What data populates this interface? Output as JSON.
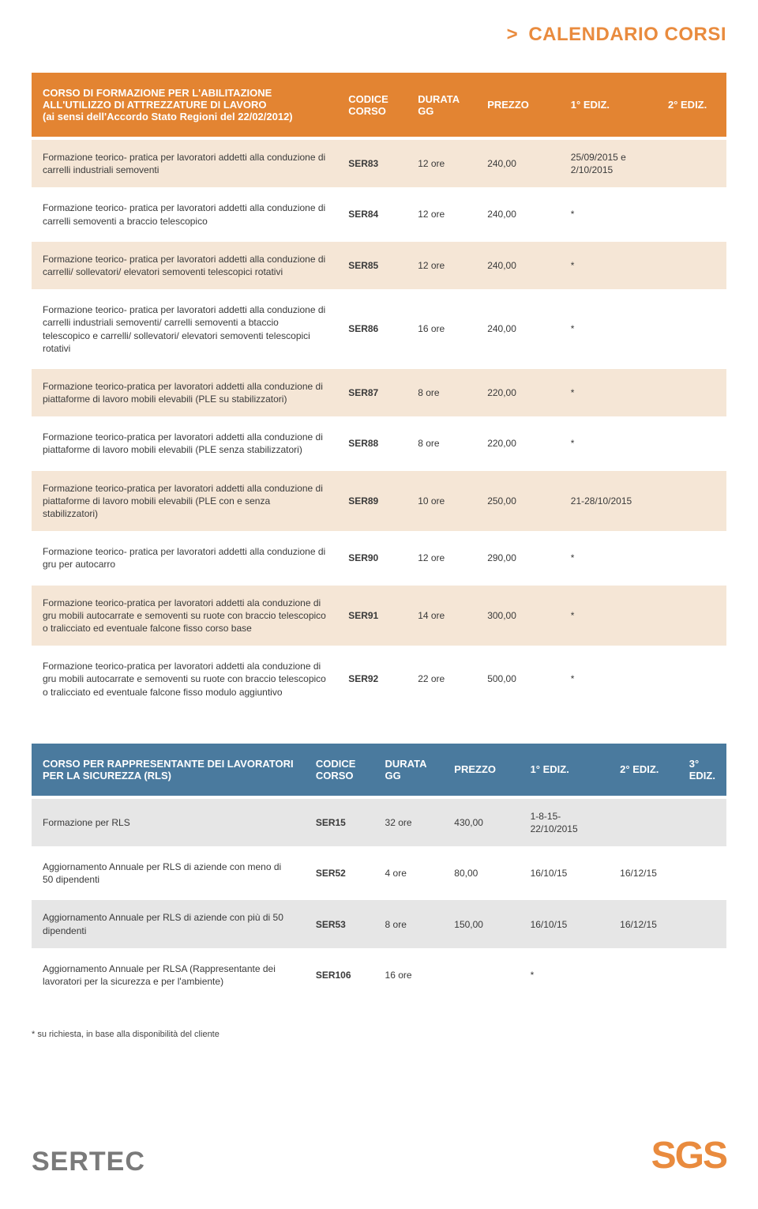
{
  "page_title_prefix": ">",
  "page_title": "CALENDARIO CORSI",
  "colors": {
    "orange": "#e38432",
    "blue": "#4a7a9e",
    "row_orange_odd": "#f5e6d6",
    "row_blue_odd": "#e6e6e6",
    "text": "#3a3a3a"
  },
  "table1": {
    "headers": {
      "desc": "CORSO DI FORMAZIONE PER L'ABILITAZIONE ALL'UTILIZZO DI ATTREZZATURE DI LAVORO\n(ai sensi dell'Accordo Stato Regioni del 22/02/2012)",
      "code": "CODICE CORSO",
      "dur": "DURATA GG",
      "prz": "PREZZO",
      "ed1": "1° EDIZ.",
      "ed2": "2° EDIZ."
    },
    "rows": [
      {
        "desc": "Formazione teorico- pratica per lavoratori addetti alla conduzione di carrelli industriali semoventi",
        "code": "SER83",
        "dur": "12 ore",
        "prz": "240,00",
        "ed1": "25/09/2015 e 2/10/2015",
        "ed2": ""
      },
      {
        "desc": "Formazione teorico- pratica per lavoratori addetti alla conduzione di carrelli semoventi a braccio telescopico",
        "code": "SER84",
        "dur": "12 ore",
        "prz": "240,00",
        "ed1": "*",
        "ed2": ""
      },
      {
        "desc": "Formazione teorico- pratica per lavoratori addetti alla conduzione di carrelli/ sollevatori/ elevatori semoventi telescopici rotativi",
        "code": "SER85",
        "dur": "12 ore",
        "prz": "240,00",
        "ed1": "*",
        "ed2": ""
      },
      {
        "desc": "Formazione teorico- pratica per lavoratori addetti alla conduzione di carrelli industriali semoventi/ carrelli semoventi a btaccio telescopico e carrelli/ sollevatori/ elevatori semoventi telescopici rotativi",
        "code": "SER86",
        "dur": "16 ore",
        "prz": "240,00",
        "ed1": "*",
        "ed2": ""
      },
      {
        "desc": "Formazione teorico-pratica per lavoratori addetti alla conduzione di piattaforme di lavoro mobili elevabili (PLE su stabilizzatori)",
        "code": "SER87",
        "dur": "8 ore",
        "prz": "220,00",
        "ed1": "*",
        "ed2": ""
      },
      {
        "desc": "Formazione teorico-pratica per lavoratori addetti alla conduzione di piattaforme di lavoro mobili elevabili (PLE senza stabilizzatori)",
        "code": "SER88",
        "dur": "8 ore",
        "prz": "220,00",
        "ed1": "*",
        "ed2": ""
      },
      {
        "desc": "Formazione teorico-pratica per lavoratori addetti alla conduzione di piattaforme di lavoro mobili elevabili (PLE con e senza stabilizzatori)",
        "code": "SER89",
        "dur": "10 ore",
        "prz": "250,00",
        "ed1": "21-28/10/2015",
        "ed2": ""
      },
      {
        "desc": "Formazione teorico- pratica per lavoratori addetti alla conduzione di gru per autocarro",
        "code": "SER90",
        "dur": "12 ore",
        "prz": "290,00",
        "ed1": "*",
        "ed2": ""
      },
      {
        "desc": "Formazione teorico-pratica per lavoratori addetti ala conduzione di gru mobili autocarrate e semoventi su ruote con braccio telescopico o tralicciato ed eventuale falcone fisso corso base",
        "code": "SER91",
        "dur": "14 ore",
        "prz": "300,00",
        "ed1": "*",
        "ed2": ""
      },
      {
        "desc": "Formazione teorico-pratica per lavoratori addetti ala conduzione di gru mobili autocarrate e semoventi su ruote con braccio telescopico o tralicciato ed eventuale falcone fisso modulo aggiuntivo",
        "code": "SER92",
        "dur": "22 ore",
        "prz": "500,00",
        "ed1": "*",
        "ed2": ""
      }
    ]
  },
  "table2": {
    "headers": {
      "desc": "CORSO PER RAPPRESENTANTE DEI LAVORATORI PER LA SICUREZZA (RLS)",
      "code": "CODICE CORSO",
      "dur": "DURATA GG",
      "prz": "PREZZO",
      "ed1": "1° EDIZ.",
      "ed2": "2° EDIZ.",
      "ed3": "3° EDIZ."
    },
    "rows": [
      {
        "desc": "Formazione per RLS",
        "code": "SER15",
        "dur": "32 ore",
        "prz": "430,00",
        "ed1": "1-8-15-22/10/2015",
        "ed2": "",
        "ed3": ""
      },
      {
        "desc": "Aggiornamento Annuale per RLS di aziende con meno di 50 dipendenti",
        "code": "SER52",
        "dur": "4 ore",
        "prz": "80,00",
        "ed1": "16/10/15",
        "ed2": "16/12/15",
        "ed3": ""
      },
      {
        "desc": "Aggiornamento Annuale per RLS di aziende con più di 50 dipendenti",
        "code": "SER53",
        "dur": "8 ore",
        "prz": "150,00",
        "ed1": "16/10/15",
        "ed2": "16/12/15",
        "ed3": ""
      },
      {
        "desc": " Aggiornamento Annuale per RLSA (Rappresentante dei lavoratori per la sicurezza e per l'ambiente)",
        "code": "SER106",
        "dur": "16 ore",
        "prz": "",
        "ed1": "*",
        "ed2": "",
        "ed3": ""
      }
    ]
  },
  "footnote": "* su richiesta, in base alla disponibilità del cliente",
  "footer": {
    "left": "SERTEC",
    "right": "SGS"
  }
}
